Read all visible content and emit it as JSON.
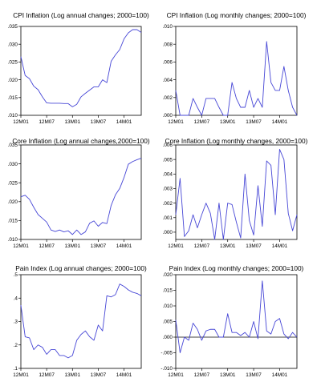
{
  "chart_data": [
    {
      "type": "line",
      "title": "CPI Inflation (Log annual changes; 2000=100)",
      "xticks": [
        "12M01",
        "12M07",
        "13M01",
        "13M07",
        "14M01"
      ],
      "yticks": [
        ".010",
        ".015",
        ".020",
        ".025",
        ".030",
        ".035"
      ],
      "ylim": [
        0.01,
        0.035
      ],
      "grid": false,
      "x": [
        "12M01",
        "12M02",
        "12M03",
        "12M04",
        "12M05",
        "12M06",
        "12M07",
        "12M08",
        "12M09",
        "12M10",
        "12M11",
        "12M12",
        "13M01",
        "13M02",
        "13M03",
        "13M04",
        "13M05",
        "13M06",
        "13M07",
        "13M08",
        "13M09",
        "13M10",
        "13M11",
        "13M12",
        "14M01",
        "14M02",
        "14M03",
        "14M04",
        "14M05"
      ],
      "values": [
        0.0265,
        0.0212,
        0.0203,
        0.0182,
        0.0172,
        0.0152,
        0.0135,
        0.0134,
        0.0134,
        0.0134,
        0.0133,
        0.0133,
        0.0124,
        0.0131,
        0.0152,
        0.0162,
        0.0171,
        0.018,
        0.018,
        0.02,
        0.0192,
        0.0252,
        0.027,
        0.0285,
        0.0315,
        0.0332,
        0.0341,
        0.0341,
        0.0333
      ]
    },
    {
      "type": "line",
      "title": "CPI Inflation (Log monthly changes; 2000=100)",
      "xticks": [
        "12M01",
        "12M07",
        "13M01",
        "13M07",
        "14M01"
      ],
      "yticks": [
        ".000",
        ".002",
        ".004",
        ".006",
        ".008",
        ".010"
      ],
      "ylim": [
        0.0,
        0.01
      ],
      "grid": false,
      "x": [
        "12M01",
        "12M02",
        "12M03",
        "12M04",
        "12M05",
        "12M06",
        "12M07",
        "12M08",
        "12M09",
        "12M10",
        "12M11",
        "12M12",
        "13M01",
        "13M02",
        "13M03",
        "13M04",
        "13M05",
        "13M06",
        "13M07",
        "13M08",
        "13M09",
        "13M10",
        "13M11",
        "13M12",
        "14M01",
        "14M02",
        "14M03",
        "14M04",
        "14M05"
      ],
      "values": [
        0.0028,
        0.0,
        0.0,
        0.0,
        0.0019,
        0.0009,
        0.0,
        0.0019,
        0.0019,
        0.0019,
        0.0009,
        0.0,
        0.0,
        0.0037,
        0.0019,
        0.0009,
        0.0009,
        0.0028,
        0.0009,
        0.0019,
        0.0009,
        0.0083,
        0.0037,
        0.0028,
        0.0028,
        0.0055,
        0.0028,
        0.0009,
        0.0
      ]
    },
    {
      "type": "line",
      "title": "Core Inflation (Log annual changes,2000=100)",
      "xticks": [
        "12M01",
        "12M07",
        "13M01",
        "13M07",
        "14M01"
      ],
      "yticks": [
        ".010",
        ".015",
        ".020",
        ".025",
        ".030",
        ".035"
      ],
      "ylim": [
        0.01,
        0.035
      ],
      "grid": false,
      "x": [
        "12M01",
        "12M02",
        "12M03",
        "12M04",
        "12M05",
        "12M06",
        "12M07",
        "12M08",
        "12M09",
        "12M10",
        "12M11",
        "12M12",
        "13M01",
        "13M02",
        "13M03",
        "13M04",
        "13M05",
        "13M06",
        "13M07",
        "13M08",
        "13M09",
        "13M10",
        "13M11",
        "13M12",
        "14M01",
        "14M02",
        "14M03",
        "14M04",
        "14M05"
      ],
      "values": [
        0.0213,
        0.0217,
        0.0206,
        0.0185,
        0.0166,
        0.0156,
        0.0146,
        0.0125,
        0.0121,
        0.0125,
        0.012,
        0.0123,
        0.0113,
        0.0125,
        0.0113,
        0.012,
        0.0143,
        0.0149,
        0.0135,
        0.0145,
        0.0142,
        0.019,
        0.0218,
        0.0235,
        0.0264,
        0.0299,
        0.0306,
        0.0311,
        0.0315
      ]
    },
    {
      "type": "line",
      "title": "Core Inflation (Log monthly changes, 2000=100)",
      "xticks": [
        "12M01",
        "12M07",
        "13M01",
        "13M07",
        "14M01"
      ],
      "yticks": [
        ".000",
        ".001",
        ".002",
        ".003",
        ".004",
        ".005",
        ".006"
      ],
      "ylim": [
        -0.0005,
        0.006
      ],
      "grid": false,
      "x": [
        "12M01",
        "12M02",
        "12M03",
        "12M04",
        "12M05",
        "12M06",
        "12M07",
        "12M08",
        "12M09",
        "12M10",
        "12M11",
        "12M12",
        "13M01",
        "13M02",
        "13M03",
        "13M04",
        "13M05",
        "13M06",
        "13M07",
        "13M08",
        "13M09",
        "13M10",
        "13M11",
        "13M12",
        "14M01",
        "14M02",
        "14M03",
        "14M04",
        "14M05"
      ],
      "values": [
        0.0012,
        0.0037,
        -0.0003,
        0.0001,
        0.0012,
        0.0003,
        0.0012,
        0.002,
        0.0013,
        -0.0005,
        0.002,
        -0.0005,
        0.002,
        0.0019,
        0.0007,
        -0.0004,
        0.004,
        0.0008,
        -0.0002,
        0.0032,
        0.0004,
        0.0049,
        0.0046,
        0.0012,
        0.0057,
        0.005,
        0.0013,
        0.0001,
        0.0012
      ]
    },
    {
      "type": "line",
      "title": "Pain Index (Log annual changes; 2000=100)",
      "xticks": [
        "12M01",
        "12M07",
        "13M01",
        "13M07",
        "14M01"
      ],
      "yticks": [
        ".1",
        ".2",
        ".3",
        ".4",
        ".5"
      ],
      "ylim": [
        0.1,
        0.5
      ],
      "grid": false,
      "x": [
        "12M01",
        "12M02",
        "12M03",
        "12M04",
        "12M05",
        "12M06",
        "12M07",
        "12M08",
        "12M09",
        "12M10",
        "12M11",
        "12M12",
        "13M01",
        "13M02",
        "13M03",
        "13M04",
        "13M05",
        "13M06",
        "13M07",
        "13M08",
        "13M09",
        "13M10",
        "13M11",
        "13M12",
        "14M01",
        "14M02",
        "14M03",
        "14M04",
        "14M05"
      ],
      "values": [
        0.37,
        0.235,
        0.23,
        0.18,
        0.2,
        0.19,
        0.16,
        0.18,
        0.18,
        0.155,
        0.155,
        0.145,
        0.155,
        0.22,
        0.245,
        0.26,
        0.235,
        0.22,
        0.285,
        0.26,
        0.41,
        0.405,
        0.415,
        0.46,
        0.45,
        0.435,
        0.425,
        0.42,
        0.41
      ]
    },
    {
      "type": "line",
      "title": "Pain Index (Log monthly changes; 2000=100)",
      "xticks": [
        "12M01",
        "12M07",
        "13M01",
        "13M07",
        "14M01"
      ],
      "yticks": [
        "-.010",
        "-.005",
        ".000",
        ".005",
        ".010",
        ".015",
        ".020"
      ],
      "ylim": [
        -0.01,
        0.02
      ],
      "grid": false,
      "zero_line": true,
      "x": [
        "12M01",
        "12M02",
        "12M03",
        "12M04",
        "12M05",
        "12M06",
        "12M07",
        "12M08",
        "12M09",
        "12M10",
        "12M11",
        "12M12",
        "13M01",
        "13M02",
        "13M03",
        "13M04",
        "13M05",
        "13M06",
        "13M07",
        "13M08",
        "13M09",
        "13M10",
        "13M11",
        "13M12",
        "14M01",
        "14M02",
        "14M03",
        "14M04",
        "14M05"
      ],
      "values": [
        0.0055,
        -0.005,
        0.0,
        -0.001,
        0.0045,
        0.0025,
        -0.001,
        0.002,
        0.0025,
        0.0025,
        0.0,
        0.0,
        0.0075,
        0.0015,
        0.0015,
        0.0005,
        0.0015,
        0.0,
        0.005,
        -0.0005,
        0.018,
        0.002,
        0.001,
        0.005,
        0.006,
        0.001,
        -0.0005,
        0.0015,
        0.0
      ]
    }
  ]
}
